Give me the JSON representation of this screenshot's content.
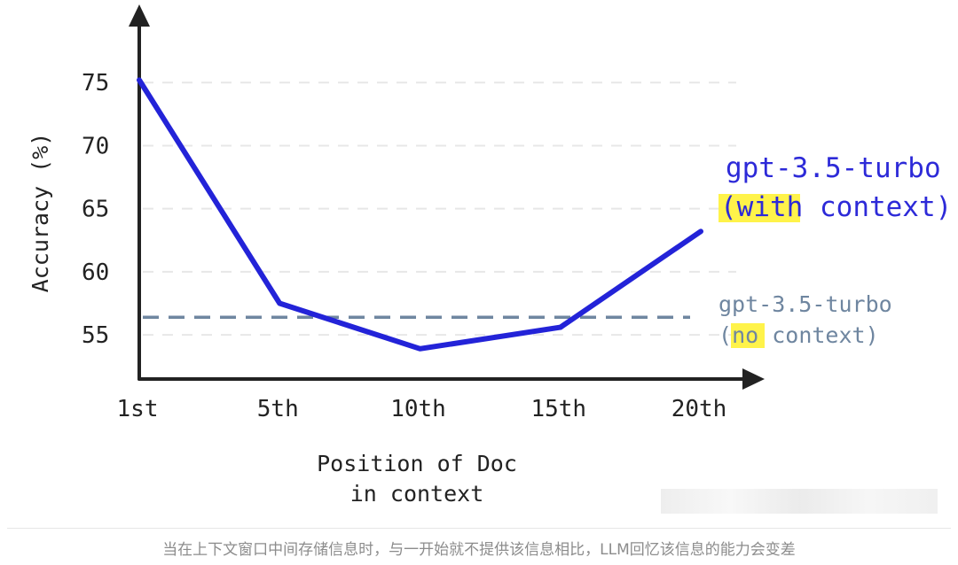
{
  "chart_data": {
    "type": "line",
    "categories": [
      "1st",
      "5th",
      "10th",
      "15th",
      "20th"
    ],
    "yticks": [
      75,
      70,
      65,
      60,
      55
    ],
    "ylim": [
      51.5,
      80
    ],
    "ylabel": "Accuracy (%)",
    "xlabel_line1": "Position of Doc",
    "xlabel_line2": "in context",
    "grid": "dashed horizontal",
    "series": [
      {
        "name": "gpt-3.5-turbo (with context)",
        "label_line1": "gpt-3.5-turbo",
        "label_open": "(",
        "label_highlight": "with",
        "label_rest": " context)",
        "values": [
          75.2,
          57.5,
          53.9,
          55.6,
          63.2
        ],
        "color": "#2323d8",
        "style": "solid"
      },
      {
        "name": "gpt-3.5-turbo (no context)",
        "label_line1": "gpt-3.5-turbo",
        "label_open": "(",
        "label_highlight": "no",
        "label_rest": " context)",
        "value": 56.4,
        "color": "#6f86a0",
        "style": "dashed"
      }
    ],
    "highlight_color": "#fff34a"
  },
  "caption": "当在上下文窗口中间存储信息时，与一开始就不提供该信息相比，LLM回忆该信息的能力会变差"
}
